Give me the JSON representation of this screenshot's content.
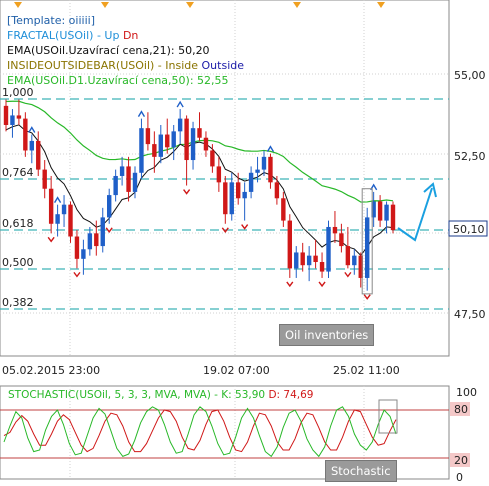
{
  "legend": {
    "template": "[Template: oiiiii]",
    "fractal_label": "FRACTAL(USOil) - Up",
    "fractal_dn": "Dn",
    "ema21": "EMA(USOil.Uzavírací cena,21): 50,20",
    "inside_label": "INSIDEOUTSIDEBAR(USOil) - Inside",
    "inside_outside": "Outside",
    "ema50": "EMA(USOil.D1.Uzavírací cena,50): 52,55"
  },
  "price_axis": {
    "ticks": [
      "55,00",
      "52,50",
      "50,10",
      "47,50"
    ],
    "current": "50,10"
  },
  "fib_levels": [
    "1,000",
    "0,764",
    "0,618",
    "0,500",
    "0,382"
  ],
  "time_axis": [
    "05.02.2015 23:00",
    "19.02 07:00",
    "25.02 11:00"
  ],
  "annotations": {
    "oil_inventories": "Oil inventories",
    "stochastic": "Stochastic"
  },
  "stochastic": {
    "title_k": "STOCHASTIC(USOil, 5, 3, 3, MVA, MVA) - K: 53,90",
    "title_d": "D: 74,69",
    "axis": [
      "100",
      "80",
      "20",
      "0"
    ],
    "k_values": [
      40,
      60,
      78,
      70,
      45,
      28,
      30,
      55,
      72,
      80,
      62,
      38,
      24,
      26,
      48,
      70,
      82,
      75,
      54,
      32,
      22,
      25,
      42,
      64,
      78,
      84,
      80,
      62,
      40,
      26,
      28,
      50,
      74,
      84,
      78,
      60,
      38,
      24,
      26,
      46,
      70,
      82,
      70,
      48,
      28,
      22,
      34,
      58,
      76,
      80,
      66,
      44,
      30,
      22,
      34,
      60,
      80,
      84,
      72,
      50,
      36,
      30,
      40,
      62,
      80,
      72,
      50
    ],
    "d_values": [
      48,
      52,
      65,
      73,
      66,
      50,
      36,
      36,
      50,
      66,
      74,
      68,
      52,
      36,
      28,
      32,
      48,
      66,
      76,
      74,
      60,
      40,
      28,
      28,
      38,
      54,
      70,
      80,
      78,
      66,
      46,
      32,
      30,
      42,
      62,
      78,
      80,
      66,
      46,
      30,
      28,
      40,
      60,
      76,
      74,
      60,
      40,
      30,
      30,
      44,
      64,
      76,
      74,
      58,
      40,
      30,
      30,
      46,
      66,
      80,
      78,
      62,
      46,
      36,
      38,
      54,
      68
    ]
  },
  "candles": [
    [
      54.0,
      54.2,
      53.2,
      53.4
    ],
    [
      53.4,
      53.9,
      53.0,
      53.7
    ],
    [
      53.7,
      54.2,
      53.4,
      53.6
    ],
    [
      53.6,
      53.8,
      52.4,
      52.6
    ],
    [
      52.6,
      53.1,
      52.2,
      52.9
    ],
    [
      52.9,
      53.2,
      51.8,
      52.0
    ],
    [
      52.0,
      52.3,
      51.1,
      51.4
    ],
    [
      51.4,
      51.8,
      50.0,
      50.3
    ],
    [
      50.3,
      50.9,
      49.9,
      50.6
    ],
    [
      50.6,
      51.2,
      50.2,
      50.9
    ],
    [
      50.9,
      51.0,
      49.7,
      49.9
    ],
    [
      49.9,
      50.1,
      48.9,
      49.2
    ],
    [
      49.2,
      49.8,
      48.7,
      49.5
    ],
    [
      49.5,
      50.2,
      49.3,
      50.0
    ],
    [
      50.0,
      50.4,
      49.3,
      49.6
    ],
    [
      49.6,
      50.8,
      49.4,
      50.5
    ],
    [
      50.5,
      51.4,
      50.3,
      51.2
    ],
    [
      51.2,
      52.0,
      51.0,
      51.8
    ],
    [
      51.8,
      52.4,
      51.5,
      52.1
    ],
    [
      52.1,
      52.4,
      51.0,
      51.3
    ],
    [
      51.3,
      52.1,
      51.1,
      51.9
    ],
    [
      51.9,
      53.6,
      51.7,
      53.3
    ],
    [
      53.3,
      53.8,
      52.6,
      52.8
    ],
    [
      52.8,
      53.2,
      51.9,
      52.4
    ],
    [
      52.4,
      53.4,
      52.2,
      53.1
    ],
    [
      53.1,
      53.6,
      52.5,
      52.7
    ],
    [
      52.7,
      53.4,
      52.3,
      53.2
    ],
    [
      53.2,
      53.9,
      52.8,
      53.6
    ],
    [
      53.6,
      53.7,
      51.5,
      52.3
    ],
    [
      52.3,
      53.5,
      52.0,
      53.3
    ],
    [
      53.3,
      53.8,
      52.9,
      53.0
    ],
    [
      53.0,
      53.2,
      52.4,
      52.6
    ],
    [
      52.6,
      52.8,
      51.9,
      52.1
    ],
    [
      52.1,
      52.4,
      51.3,
      51.6
    ],
    [
      51.6,
      51.8,
      50.3,
      50.6
    ],
    [
      50.6,
      51.9,
      50.4,
      51.6
    ],
    [
      51.6,
      51.9,
      50.9,
      51.1
    ],
    [
      51.1,
      51.6,
      50.4,
      51.3
    ],
    [
      51.3,
      52.1,
      51.1,
      51.9
    ],
    [
      51.9,
      52.4,
      51.6,
      52.0
    ],
    [
      52.0,
      52.6,
      51.8,
      52.4
    ],
    [
      52.4,
      52.5,
      51.4,
      51.6
    ],
    [
      51.6,
      51.8,
      50.9,
      51.1
    ],
    [
      51.1,
      51.3,
      50.2,
      50.4
    ],
    [
      50.4,
      50.6,
      48.6,
      48.9
    ],
    [
      48.9,
      49.6,
      48.6,
      49.4
    ],
    [
      49.4,
      49.7,
      48.8,
      49.0
    ],
    [
      49.0,
      49.6,
      48.5,
      49.3
    ],
    [
      49.3,
      49.8,
      48.9,
      49.1
    ],
    [
      49.1,
      49.4,
      48.6,
      48.8
    ],
    [
      48.8,
      50.4,
      48.6,
      50.2
    ],
    [
      50.2,
      50.7,
      49.7,
      50.0
    ],
    [
      50.0,
      50.3,
      49.4,
      49.6
    ],
    [
      49.6,
      50.2,
      48.9,
      49.0
    ],
    [
      49.0,
      49.5,
      48.7,
      49.3
    ],
    [
      49.3,
      49.4,
      48.3,
      48.6
    ],
    [
      48.6,
      50.8,
      48.2,
      50.5
    ],
    [
      50.5,
      51.3,
      50.2,
      51.0
    ],
    [
      51.0,
      51.2,
      50.2,
      50.4
    ],
    [
      50.4,
      51.0,
      50.0,
      50.9
    ],
    [
      50.9,
      51.0,
      50.0,
      50.1
    ]
  ],
  "colors": {
    "bull": "#1f5fc8",
    "bear": "#d01818",
    "ema21": "#111111",
    "ema50": "#28b828",
    "fib": "#3fb3b8",
    "grid": "#d0d0d0",
    "forecast": "#1aa0e0",
    "stoch_k": "#28b828",
    "stoch_d": "#d01818"
  }
}
